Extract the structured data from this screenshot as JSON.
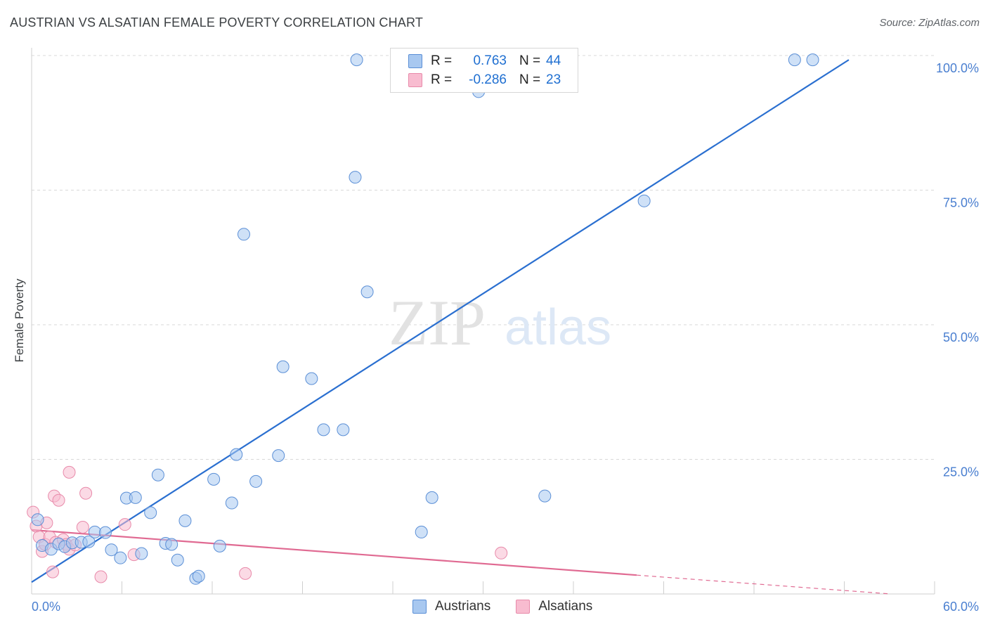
{
  "header": {
    "title": "AUSTRIAN VS ALSATIAN FEMALE POVERTY CORRELATION CHART",
    "source": "Source: ZipAtlas.com"
  },
  "watermark": {
    "zip": "ZIP",
    "atlas": "atlas"
  },
  "legend": {
    "rows": [
      {
        "r_label": "R =",
        "r_value": "0.763",
        "n_label": "N =",
        "n_value": "44",
        "color": "#a8c8f0"
      },
      {
        "r_label": "R =",
        "r_value": "-0.286",
        "n_label": "N =",
        "n_value": "23",
        "color": "#f8bcd0"
      }
    ]
  },
  "bottom_legend": {
    "austrians": "Austrians",
    "alsatians": "Alsatians"
  },
  "colors": {
    "blue_fill": "#a8c8f0",
    "blue_stroke": "#5b8fd6",
    "blue_line": "#2a6fd0",
    "pink_fill": "#f8bcd0",
    "pink_stroke": "#e88aaa",
    "pink_line": "#e06a92",
    "grid": "#d8d8d8",
    "tick_label": "#4a7fd0"
  },
  "chart_data": {
    "type": "scatter",
    "title": "AUSTRIAN VS ALSATIAN FEMALE POVERTY CORRELATION CHART",
    "xlabel": "",
    "ylabel": "Female Poverty",
    "xlim": [
      0,
      60
    ],
    "ylim": [
      0,
      100
    ],
    "x_tick_labels": [
      "0.0%",
      "60.0%"
    ],
    "y_tick_labels": [
      "100.0%",
      "75.0%",
      "50.0%",
      "25.0%"
    ],
    "y_ticks": [
      100,
      75,
      50,
      25
    ],
    "grid": true,
    "legend_position": "top-center",
    "series": [
      {
        "name": "Austrians",
        "r": 0.763,
        "n": 44,
        "points": [
          [
            0.4,
            13.8
          ],
          [
            0.7,
            9.0
          ],
          [
            1.3,
            8.3
          ],
          [
            1.8,
            9.3
          ],
          [
            2.2,
            8.8
          ],
          [
            2.7,
            9.5
          ],
          [
            3.3,
            9.6
          ],
          [
            3.8,
            9.7
          ],
          [
            4.2,
            11.5
          ],
          [
            4.9,
            11.4
          ],
          [
            5.3,
            8.2
          ],
          [
            5.9,
            6.7
          ],
          [
            6.3,
            17.8
          ],
          [
            6.9,
            17.9
          ],
          [
            7.3,
            7.5
          ],
          [
            7.9,
            15.1
          ],
          [
            8.4,
            22.1
          ],
          [
            8.9,
            9.4
          ],
          [
            9.3,
            9.2
          ],
          [
            9.7,
            6.3
          ],
          [
            10.2,
            13.6
          ],
          [
            10.9,
            2.9
          ],
          [
            11.1,
            3.3
          ],
          [
            12.1,
            21.3
          ],
          [
            12.5,
            8.9
          ],
          [
            13.3,
            16.9
          ],
          [
            13.6,
            25.9
          ],
          [
            14.1,
            66.8
          ],
          [
            14.9,
            20.9
          ],
          [
            16.4,
            25.7
          ],
          [
            16.7,
            42.2
          ],
          [
            18.6,
            40.0
          ],
          [
            19.4,
            30.5
          ],
          [
            20.7,
            30.5
          ],
          [
            21.6,
            99.2
          ],
          [
            21.5,
            77.4
          ],
          [
            22.3,
            56.1
          ],
          [
            25.9,
            11.5
          ],
          [
            26.6,
            17.9
          ],
          [
            29.7,
            93.3
          ],
          [
            34.1,
            18.2
          ],
          [
            40.7,
            73.0
          ],
          [
            50.7,
            99.2
          ],
          [
            51.9,
            99.2
          ]
        ],
        "trend": {
          "x": [
            0,
            54.3
          ],
          "y": [
            2.2,
            99.2
          ]
        }
      },
      {
        "name": "Alsatians",
        "r": -0.286,
        "n": 23,
        "points": [
          [
            0.1,
            15.2
          ],
          [
            0.3,
            12.6
          ],
          [
            0.5,
            10.6
          ],
          [
            0.7,
            7.9
          ],
          [
            0.9,
            9.2
          ],
          [
            1.0,
            13.2
          ],
          [
            1.2,
            10.6
          ],
          [
            1.4,
            4.1
          ],
          [
            1.6,
            9.6
          ],
          [
            1.5,
            18.2
          ],
          [
            1.8,
            17.4
          ],
          [
            2.1,
            10.1
          ],
          [
            2.3,
            9.2
          ],
          [
            2.5,
            8.3
          ],
          [
            2.5,
            22.6
          ],
          [
            2.9,
            9.1
          ],
          [
            3.4,
            12.4
          ],
          [
            3.6,
            18.7
          ],
          [
            4.6,
            3.2
          ],
          [
            6.2,
            12.9
          ],
          [
            6.8,
            7.3
          ],
          [
            14.2,
            3.8
          ],
          [
            31.2,
            7.6
          ]
        ],
        "trend": {
          "x": [
            0,
            40.2
          ],
          "y": [
            11.9,
            3.5
          ]
        },
        "trend_dashed_extension": {
          "x": [
            40.2,
            57.1
          ],
          "y": [
            3.5,
            0.0
          ]
        }
      }
    ]
  }
}
